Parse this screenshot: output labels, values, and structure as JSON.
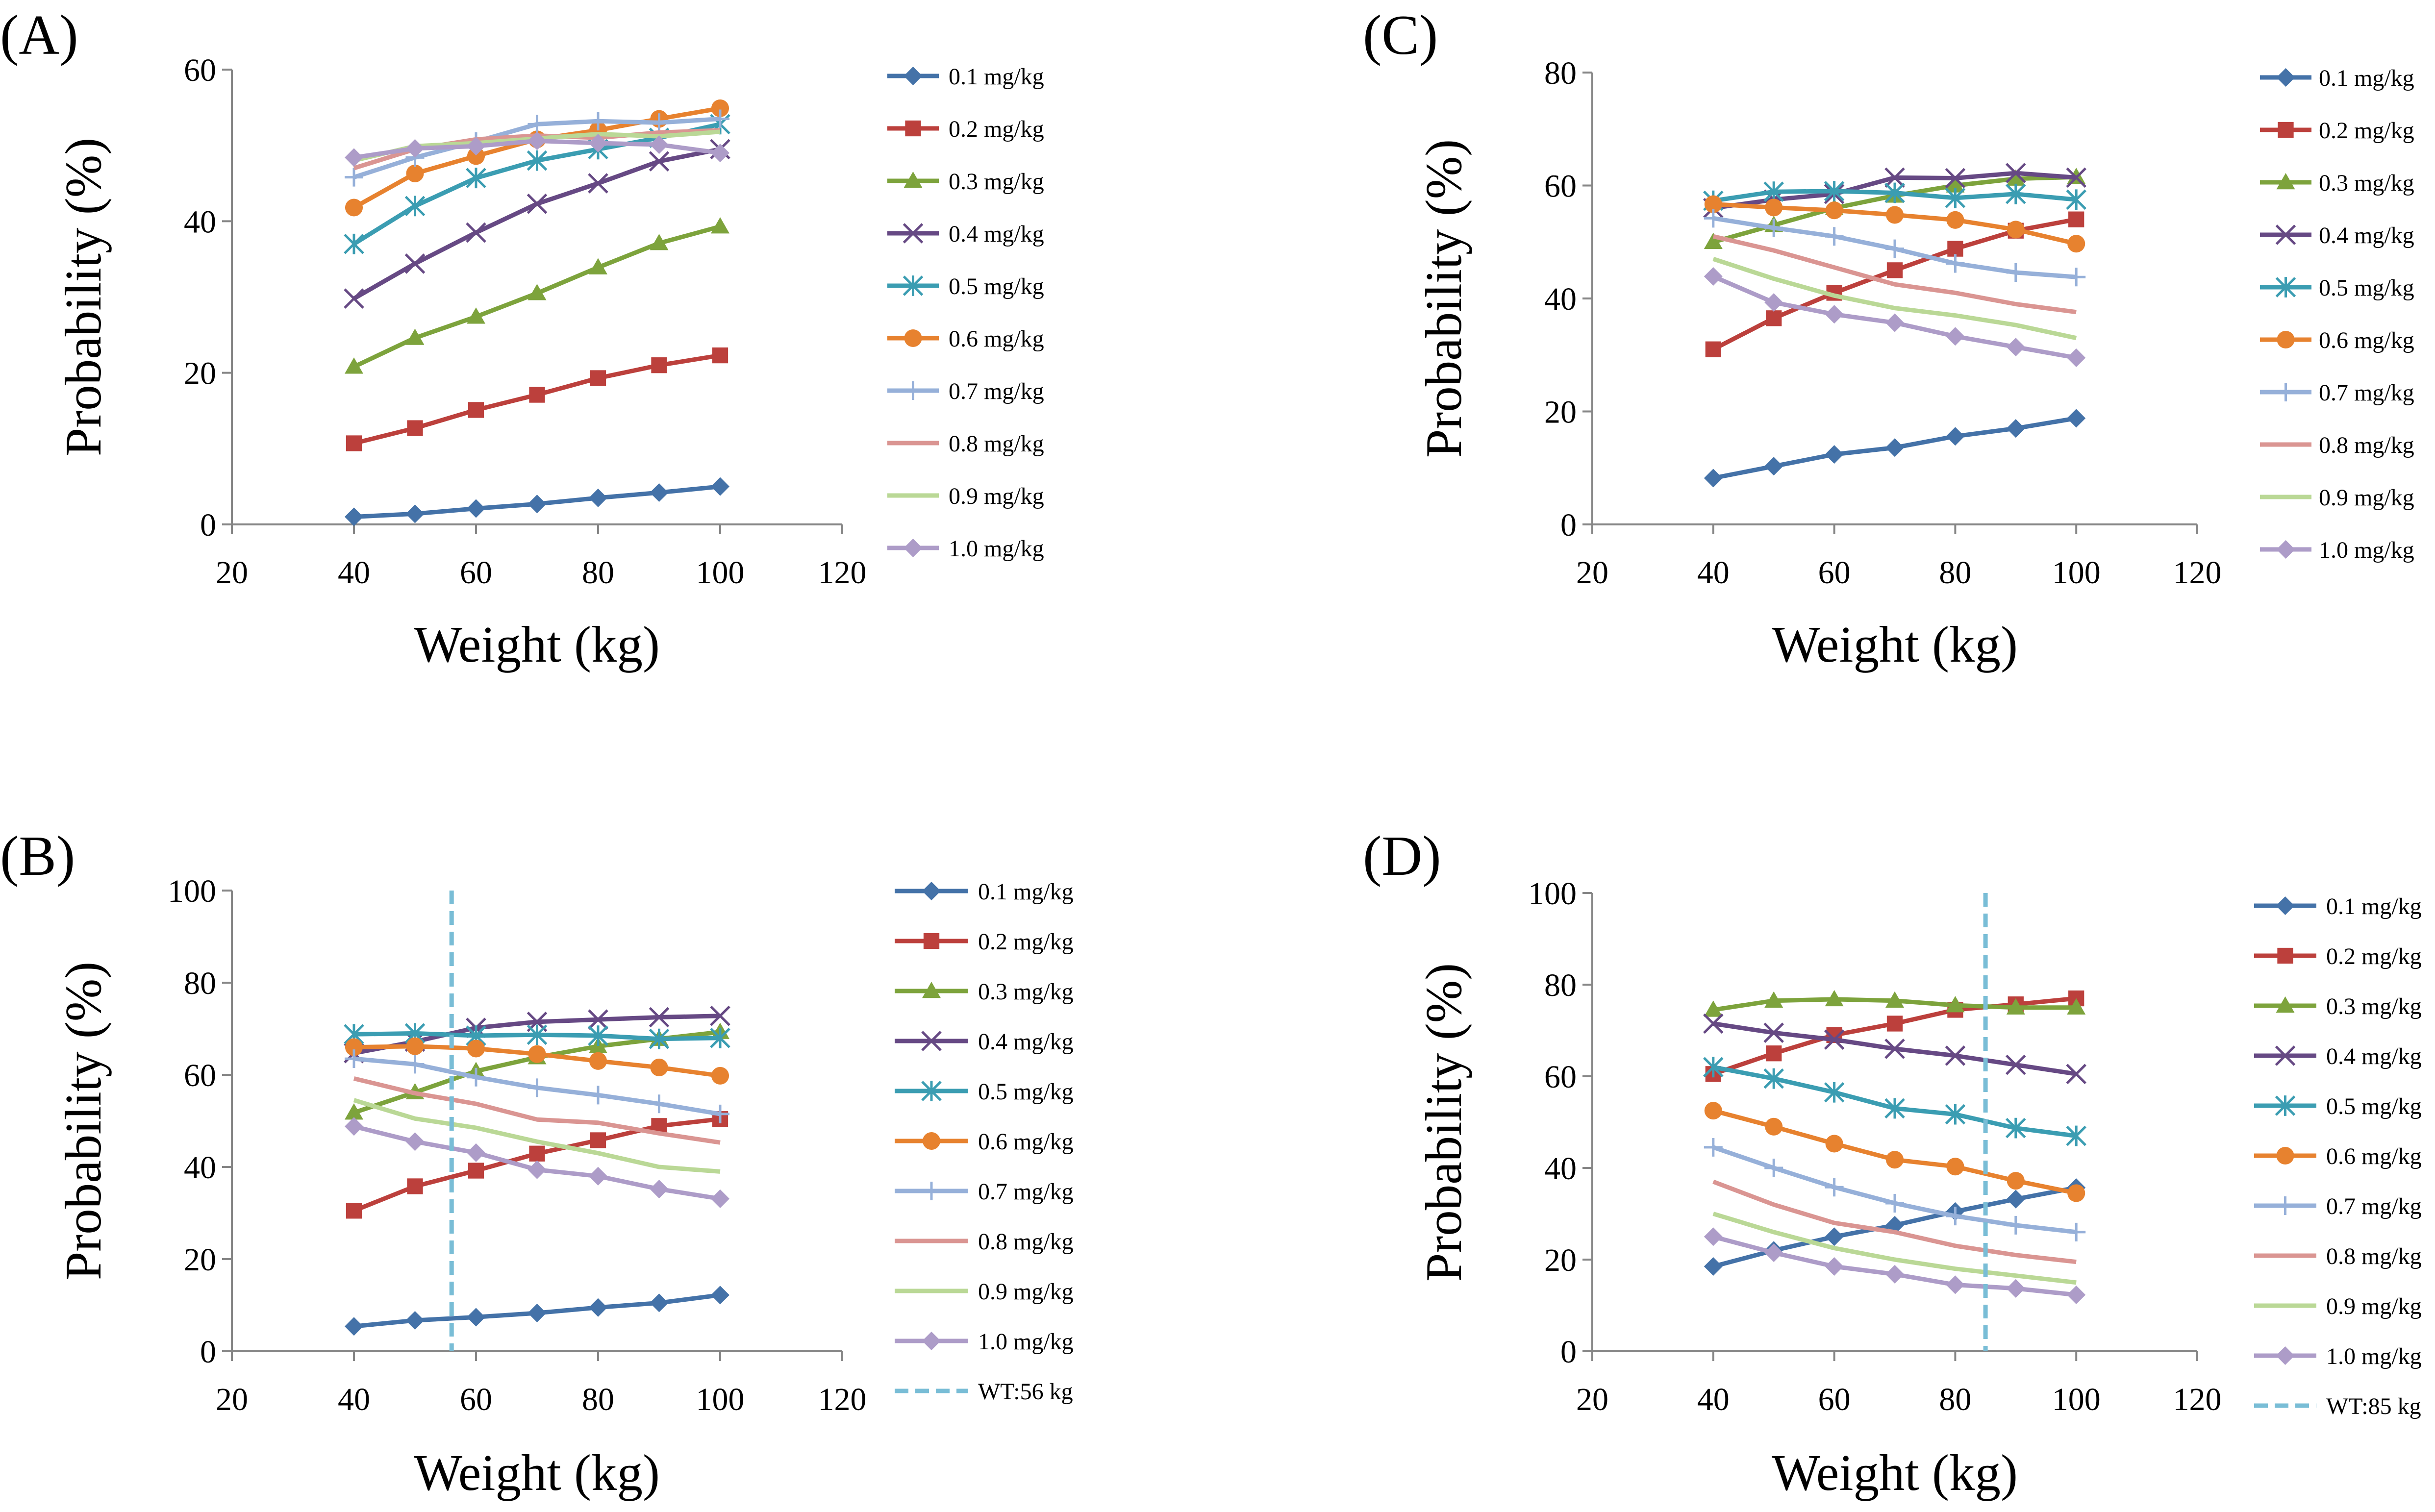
{
  "chart_data": [
    {
      "panel": "(A)",
      "type": "line",
      "xlabel": "Weight (kg)",
      "ylabel": "Probability (%)",
      "xlim": [
        20,
        120
      ],
      "ylim": [
        0,
        60
      ],
      "xticks": [
        20,
        40,
        60,
        80,
        100,
        120
      ],
      "yticks": [
        0,
        20,
        40,
        60
      ],
      "x": [
        40,
        50,
        60,
        70,
        80,
        90,
        100
      ],
      "series": [
        {
          "name": "0.1 mg/kg",
          "values": [
            1.0,
            1.4,
            2.1,
            2.7,
            3.5,
            4.2,
            5.0
          ]
        },
        {
          "name": "0.2 mg/kg",
          "values": [
            10.7,
            12.7,
            15.1,
            17.1,
            19.3,
            21.0,
            22.3
          ]
        },
        {
          "name": "0.3 mg/kg",
          "values": [
            20.8,
            24.6,
            27.4,
            30.5,
            33.9,
            37.1,
            39.3
          ]
        },
        {
          "name": "0.4 mg/kg",
          "values": [
            29.8,
            34.4,
            38.5,
            42.3,
            45.0,
            47.9,
            49.5
          ]
        },
        {
          "name": "0.5 mg/kg",
          "values": [
            37.0,
            42.0,
            45.7,
            48.0,
            49.5,
            51.0,
            52.8
          ]
        },
        {
          "name": "0.6 mg/kg",
          "values": [
            41.8,
            46.3,
            48.6,
            50.8,
            52.0,
            53.5,
            54.9
          ]
        },
        {
          "name": "0.7 mg/kg",
          "values": [
            45.8,
            48.4,
            50.5,
            52.8,
            53.2,
            53.0,
            53.5
          ]
        },
        {
          "name": "0.8 mg/kg",
          "values": [
            47.0,
            49.5,
            50.8,
            51.3,
            51.0,
            51.7,
            52.0
          ]
        },
        {
          "name": "0.9 mg/kg",
          "values": [
            48.0,
            49.9,
            50.3,
            50.9,
            51.5,
            51.2,
            51.8
          ]
        },
        {
          "name": "1.0 mg/kg",
          "values": [
            48.4,
            49.6,
            49.9,
            50.6,
            50.3,
            50.1,
            49.0
          ]
        }
      ]
    },
    {
      "panel": "(B)",
      "type": "line",
      "xlabel": "Weight (kg)",
      "ylabel": "Probability (%)",
      "xlim": [
        20,
        120
      ],
      "ylim": [
        0,
        100
      ],
      "xticks": [
        20,
        40,
        60,
        80,
        100,
        120
      ],
      "yticks": [
        0,
        20,
        40,
        60,
        80,
        100
      ],
      "x": [
        40,
        50,
        60,
        70,
        80,
        90,
        100
      ],
      "series": [
        {
          "name": "0.1 mg/kg",
          "values": [
            5.4,
            6.7,
            7.4,
            8.3,
            9.5,
            10.5,
            12.2
          ]
        },
        {
          "name": "0.2 mg/kg",
          "values": [
            30.5,
            35.8,
            39.2,
            42.9,
            45.8,
            48.9,
            50.4
          ]
        },
        {
          "name": "0.3 mg/kg",
          "values": [
            51.8,
            56.2,
            60.8,
            63.8,
            66.2,
            67.8,
            69.3
          ]
        },
        {
          "name": "0.4 mg/kg",
          "values": [
            64.7,
            67.2,
            70.2,
            71.5,
            72.0,
            72.5,
            72.8
          ]
        },
        {
          "name": "0.5 mg/kg",
          "values": [
            68.8,
            69.0,
            68.5,
            68.7,
            68.5,
            67.8,
            68.0
          ]
        },
        {
          "name": "0.6 mg/kg",
          "values": [
            66.0,
            66.2,
            65.7,
            64.5,
            63.0,
            61.6,
            59.8
          ]
        },
        {
          "name": "0.7 mg/kg",
          "values": [
            63.5,
            62.3,
            59.5,
            57.2,
            55.6,
            53.7,
            51.5
          ]
        },
        {
          "name": "0.8 mg/kg",
          "values": [
            59.2,
            56.0,
            53.7,
            50.3,
            49.6,
            47.3,
            45.3
          ]
        },
        {
          "name": "0.9 mg/kg",
          "values": [
            54.5,
            50.5,
            48.5,
            45.5,
            43.0,
            40.0,
            39.0
          ]
        },
        {
          "name": "1.0 mg/kg",
          "values": [
            48.8,
            45.5,
            43.1,
            39.4,
            38.0,
            35.2,
            33.1
          ]
        }
      ],
      "reference_line": {
        "name": "WT:56 kg",
        "x": 56
      }
    },
    {
      "panel": "(C)",
      "type": "line",
      "xlabel": "Weight (kg)",
      "ylabel": "Probability (%)",
      "xlim": [
        20,
        120
      ],
      "ylim": [
        0,
        80
      ],
      "xticks": [
        20,
        40,
        60,
        80,
        100,
        120
      ],
      "yticks": [
        0,
        20,
        40,
        60,
        80
      ],
      "x": [
        40,
        50,
        60,
        70,
        80,
        90,
        100
      ],
      "series": [
        {
          "name": "0.1 mg/kg",
          "values": [
            8.2,
            10.3,
            12.4,
            13.6,
            15.6,
            17.0,
            18.8
          ]
        },
        {
          "name": "0.2 mg/kg",
          "values": [
            31.0,
            36.5,
            41.0,
            45.0,
            48.8,
            52.0,
            54.0
          ]
        },
        {
          "name": "0.3 mg/kg",
          "values": [
            50.0,
            53.0,
            56.0,
            58.2,
            60.0,
            61.2,
            61.5
          ]
        },
        {
          "name": "0.4 mg/kg",
          "values": [
            56.0,
            57.5,
            58.5,
            61.4,
            61.3,
            62.2,
            61.4
          ]
        },
        {
          "name": "0.5 mg/kg",
          "values": [
            57.3,
            58.9,
            59.0,
            58.7,
            57.8,
            58.5,
            57.5
          ]
        },
        {
          "name": "0.6 mg/kg",
          "values": [
            56.7,
            56.1,
            55.6,
            54.8,
            53.9,
            52.2,
            49.7
          ]
        },
        {
          "name": "0.7 mg/kg",
          "values": [
            54.2,
            52.5,
            51.0,
            48.8,
            46.2,
            44.6,
            43.8
          ]
        },
        {
          "name": "0.8 mg/kg",
          "values": [
            51.0,
            48.5,
            45.5,
            42.5,
            41.0,
            39.0,
            37.6
          ]
        },
        {
          "name": "0.9 mg/kg",
          "values": [
            47.0,
            43.5,
            40.5,
            38.3,
            37.0,
            35.3,
            33.0
          ]
        },
        {
          "name": "1.0 mg/kg",
          "values": [
            43.9,
            39.3,
            37.2,
            35.7,
            33.3,
            31.4,
            29.5
          ]
        }
      ]
    },
    {
      "panel": "(D)",
      "type": "line",
      "xlabel": "Weight (kg)",
      "ylabel": "Probability (%)",
      "xlim": [
        20,
        120
      ],
      "ylim": [
        0,
        100
      ],
      "xticks": [
        20,
        40,
        60,
        80,
        100,
        120
      ],
      "yticks": [
        0,
        20,
        40,
        60,
        80,
        100
      ],
      "x": [
        40,
        50,
        60,
        70,
        80,
        90,
        100
      ],
      "series": [
        {
          "name": "0.1 mg/kg",
          "values": [
            18.5,
            22.0,
            25.0,
            27.5,
            30.5,
            33.2,
            35.7
          ]
        },
        {
          "name": "0.2 mg/kg",
          "values": [
            60.5,
            65.0,
            69.0,
            71.5,
            74.5,
            75.7,
            77.0
          ]
        },
        {
          "name": "0.3 mg/kg",
          "values": [
            74.5,
            76.5,
            76.8,
            76.5,
            75.5,
            75.0,
            75.0
          ]
        },
        {
          "name": "0.4 mg/kg",
          "values": [
            71.5,
            69.5,
            68.0,
            66.0,
            64.5,
            62.5,
            60.5
          ]
        },
        {
          "name": "0.5 mg/kg",
          "values": [
            62.0,
            59.5,
            56.5,
            53.0,
            51.7,
            48.7,
            47.0
          ]
        },
        {
          "name": "0.6 mg/kg",
          "values": [
            52.5,
            49.0,
            45.3,
            41.8,
            40.3,
            37.2,
            34.5
          ]
        },
        {
          "name": "0.7 mg/kg",
          "values": [
            44.5,
            40.0,
            35.8,
            32.3,
            29.5,
            27.5,
            26.0
          ]
        },
        {
          "name": "0.8 mg/kg",
          "values": [
            37.0,
            32.0,
            28.0,
            26.0,
            23.0,
            21.0,
            19.5
          ]
        },
        {
          "name": "0.9 mg/kg",
          "values": [
            30.0,
            26.0,
            22.5,
            20.0,
            18.0,
            16.5,
            15.0
          ]
        },
        {
          "name": "1.0 mg/kg",
          "values": [
            25.0,
            21.5,
            18.5,
            16.8,
            14.5,
            13.7,
            12.3
          ]
        }
      ],
      "reference_line": {
        "name": "WT:85 kg",
        "x": 85
      }
    }
  ],
  "series_styles": [
    {
      "color": "#4472a8",
      "marker": "diamond"
    },
    {
      "color": "#bc403c",
      "marker": "square"
    },
    {
      "color": "#7da33c",
      "marker": "triangle"
    },
    {
      "color": "#664984",
      "marker": "x"
    },
    {
      "color": "#3b9db2",
      "marker": "star"
    },
    {
      "color": "#e7822f",
      "marker": "circle"
    },
    {
      "color": "#96b0d9",
      "marker": "plus"
    },
    {
      "color": "#da9592",
      "marker": "none"
    },
    {
      "color": "#bad896",
      "marker": "none"
    },
    {
      "color": "#ad9cc8",
      "marker": "diamond"
    }
  ],
  "reference_line_color": "#79bdd6"
}
